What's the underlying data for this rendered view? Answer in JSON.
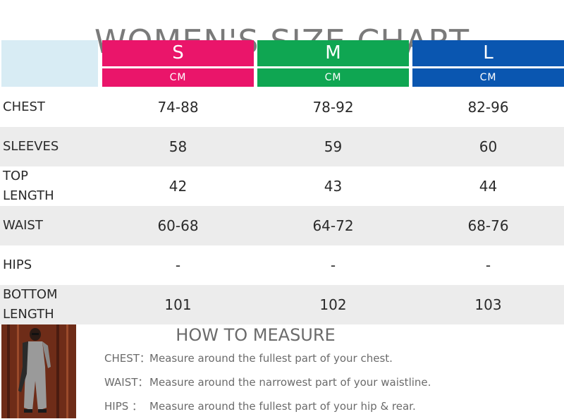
{
  "title": "WOMEN'S SIZE CHART",
  "sizes": [
    {
      "name": "S",
      "unit": "CM",
      "color": "#ea156a"
    },
    {
      "name": "M",
      "unit": "CM",
      "color": "#0fa652"
    },
    {
      "name": "L",
      "unit": "CM",
      "color": "#0a56b0"
    }
  ],
  "rows": [
    {
      "label": "CHEST",
      "values": [
        "74-88",
        "78-92",
        "82-96"
      ]
    },
    {
      "label": "SLEEVES",
      "values": [
        "58",
        "59",
        "60"
      ]
    },
    {
      "label": "TOP LENGTH",
      "values": [
        "42",
        "43",
        "44"
      ]
    },
    {
      "label": "WAIST",
      "values": [
        "60-68",
        "64-72",
        "68-76"
      ]
    },
    {
      "label": "HIPS",
      "values": [
        "-",
        "-",
        "-"
      ]
    },
    {
      "label": "BOTTOM LENGTH",
      "values": [
        "101",
        "102",
        "103"
      ]
    }
  ],
  "measure": {
    "title": "HOW TO MEASURE",
    "lines": [
      {
        "key": "CHEST：",
        "text": "Measure around the fullest part of your chest."
      },
      {
        "key": "WAIST：",
        "text": "Measure around the narrowest part of your waistline."
      },
      {
        "key": "HIPS  ：",
        "text": "Measure around the fullest part of your hip & rear."
      }
    ]
  }
}
